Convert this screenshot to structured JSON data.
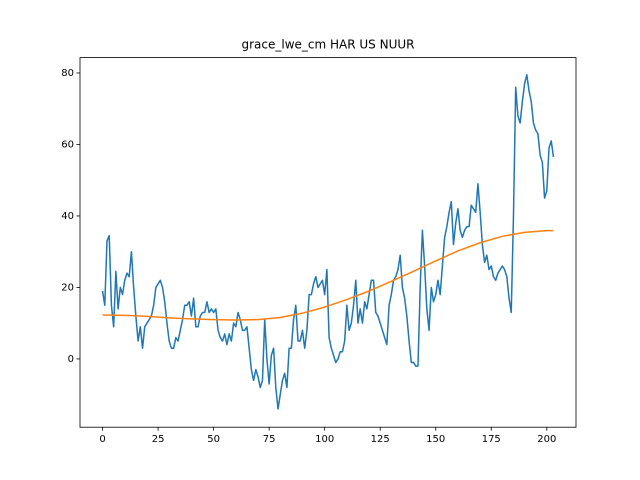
{
  "chart_data": {
    "type": "line",
    "title": "grace_lwe_cm HAR US NUUR",
    "xlim": [
      -10.15,
      213.15
    ],
    "xticks": [
      0,
      25,
      50,
      75,
      100,
      125,
      150,
      175,
      200
    ],
    "ylim": [
      -19.1,
      84.3
    ],
    "yticks": [
      0,
      20,
      40,
      60,
      80
    ],
    "series": [
      {
        "color": "#1f77b4",
        "values": [
          19,
          15,
          33,
          34.5,
          15,
          9,
          24.5,
          14,
          20,
          18,
          22,
          24,
          23,
          30,
          20,
          12,
          5,
          9,
          3,
          9,
          10,
          11,
          12,
          15,
          20,
          21,
          22,
          20,
          16,
          10,
          5,
          3,
          3,
          6,
          5,
          8,
          11,
          15,
          15,
          16,
          12,
          17,
          9,
          9,
          12,
          13,
          13,
          16,
          13,
          14,
          13,
          14,
          8,
          6,
          5,
          7,
          4,
          7,
          5,
          10,
          9,
          13,
          11,
          8,
          8,
          9,
          3,
          -3,
          -6,
          -3,
          -5,
          -8,
          -6,
          11,
          0,
          -7,
          1,
          3,
          -8,
          -14,
          -10,
          -6,
          -4,
          -8,
          3,
          3,
          11,
          15,
          5,
          5,
          8,
          3,
          8,
          18,
          18,
          21,
          23,
          20,
          21,
          22,
          18,
          25,
          6,
          3,
          1,
          -1,
          0,
          2,
          2,
          5,
          15,
          8,
          10,
          15,
          22,
          10,
          14,
          10,
          16,
          14,
          18,
          22,
          22,
          13,
          12,
          10,
          8,
          6,
          4,
          15,
          18,
          22,
          23,
          25,
          29,
          20,
          17,
          12,
          5,
          -1,
          -1,
          -2,
          -2,
          20,
          36,
          26,
          14,
          8,
          20,
          16,
          18,
          22,
          18,
          26,
          34,
          37,
          41,
          44,
          32,
          38,
          42,
          36,
          34,
          36,
          37,
          37,
          43,
          42,
          41,
          49,
          41,
          32,
          27,
          29,
          25,
          26,
          23,
          22,
          24,
          25,
          26,
          25,
          23,
          17,
          13,
          40,
          76,
          68,
          66,
          72,
          77,
          79.5,
          75,
          72,
          66,
          64,
          63,
          57,
          55,
          45,
          47,
          59,
          61,
          56.5
        ]
      },
      {
        "color": "#ff7f0e",
        "x": [
          0,
          10,
          20,
          30,
          40,
          50,
          60,
          70,
          80,
          90,
          100,
          110,
          120,
          130,
          140,
          150,
          160,
          170,
          180,
          190,
          200,
          203
        ],
        "values": [
          12.3,
          12.2,
          11.9,
          11.5,
          11.2,
          11.0,
          10.9,
          11.0,
          11.6,
          12.8,
          14.5,
          16.6,
          19.0,
          21.7,
          24.5,
          27.4,
          30.2,
          32.5,
          34.3,
          35.4,
          35.9,
          35.9
        ]
      }
    ]
  }
}
